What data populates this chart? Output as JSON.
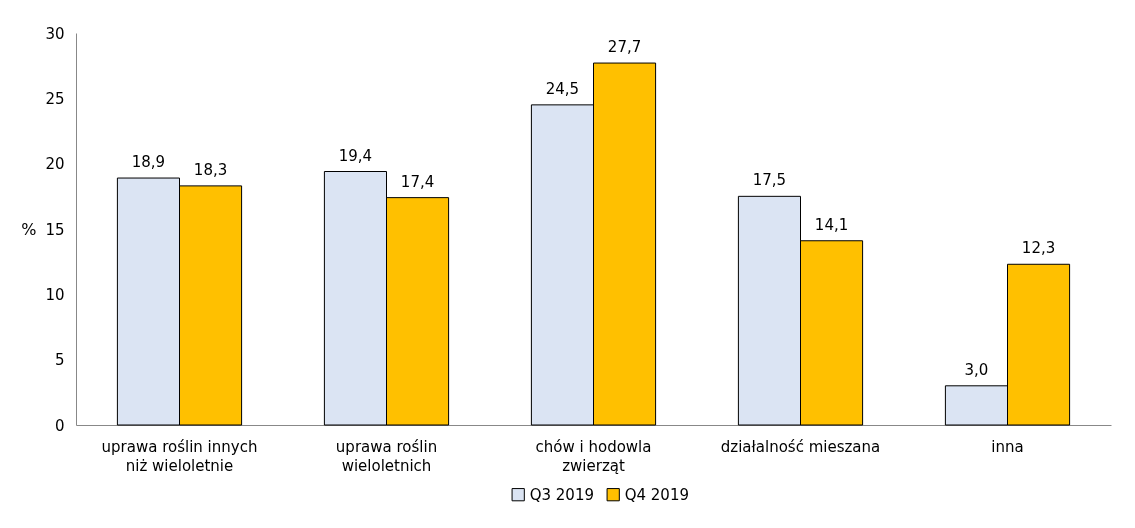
{
  "chart_data": {
    "type": "bar",
    "ylabel": "%",
    "categories": [
      "uprawa roślin innych\nniż wieloletnie",
      "uprawa roślin\nwieloletnich",
      "chów i hodowla\nzwierząt",
      "działalność mieszana",
      "inna"
    ],
    "series": [
      {
        "name": "Q3 2019",
        "color": "#dbe4f3",
        "values": [
          18.9,
          19.4,
          24.5,
          17.5,
          3.0
        ],
        "value_labels": [
          "18,9",
          "19,4",
          "24,5",
          "17,5",
          "3,0"
        ]
      },
      {
        "name": "Q4 2019",
        "color": "#ffc000",
        "values": [
          18.3,
          17.4,
          27.7,
          14.1,
          12.3
        ],
        "value_labels": [
          "18,3",
          "17,4",
          "27,7",
          "14,1",
          "12,3"
        ]
      }
    ],
    "ylim": [
      0,
      30
    ],
    "yticks": [
      0,
      5,
      10,
      15,
      20,
      25,
      30
    ],
    "grid": false,
    "legend": "bottom"
  }
}
